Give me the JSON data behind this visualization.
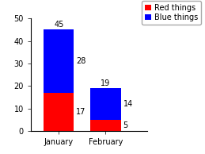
{
  "categories": [
    "January",
    "February"
  ],
  "red_values": [
    17,
    5
  ],
  "blue_values": [
    28,
    14
  ],
  "red_color": "#ff0000",
  "blue_color": "#0000ff",
  "red_label": "Red things",
  "blue_label": "Blue things",
  "ylim": [
    0,
    50
  ],
  "yticks": [
    0,
    10,
    20,
    30,
    40,
    50
  ],
  "bar_width": 0.65,
  "total_labels": [
    45,
    19
  ],
  "red_labels": [
    17,
    5
  ],
  "blue_labels": [
    28,
    14
  ],
  "background_color": "#ffffff",
  "label_fontsize": 7,
  "tick_fontsize": 7,
  "legend_fontsize": 7
}
